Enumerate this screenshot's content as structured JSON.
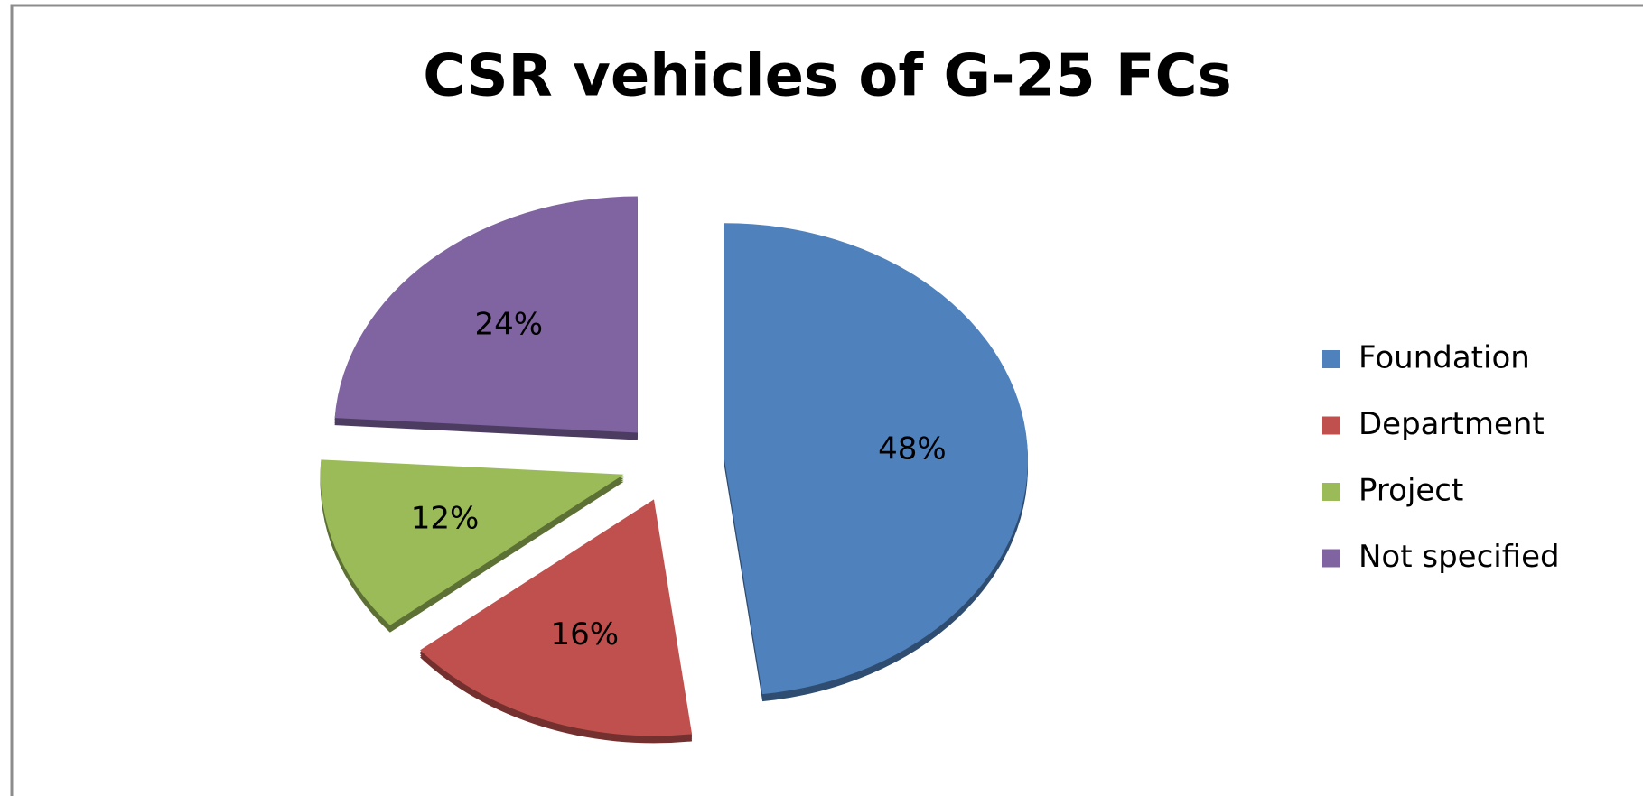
{
  "chart_data": {
    "type": "pie",
    "title": "CSR vehicles of G-25 FCs",
    "categories": [
      "Foundation",
      "Department",
      "Project",
      "Not specified"
    ],
    "values": [
      48,
      16,
      12,
      24
    ],
    "value_labels": [
      "48%",
      "16%",
      "12%",
      "24%"
    ],
    "colors": [
      "#4f81bd",
      "#c0504d",
      "#9bbb59",
      "#8064a2"
    ],
    "legend": "right"
  }
}
